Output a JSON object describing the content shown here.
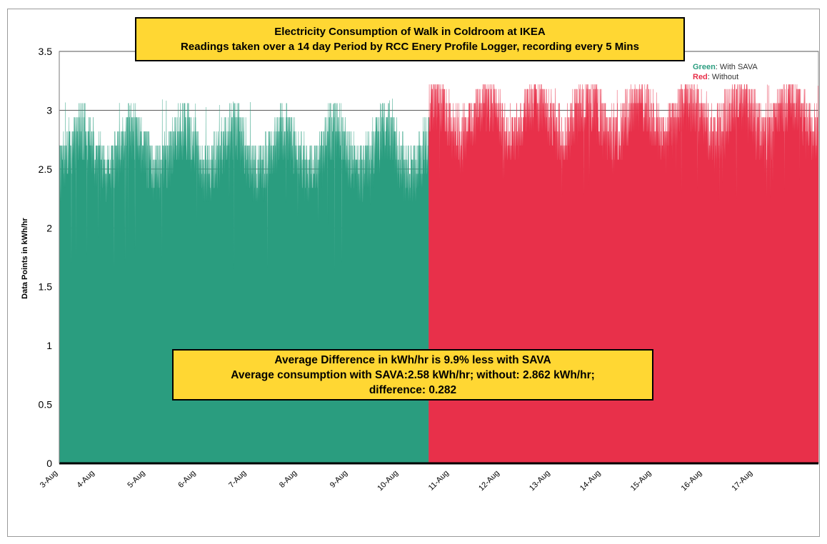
{
  "colors": {
    "with_sava": "#2a9d7f",
    "without": "#e8304a",
    "box": "#ffd733"
  },
  "legend": {
    "green_key": "Green",
    "green_rest": ": With SAVA",
    "red_key": "Red",
    "red_rest": ": Without"
  },
  "summary_box": {
    "line1": "Average Difference in kWh/hr is 9.9% less with SAVA",
    "line2": "Average consumption with SAVA:2.58 kWh/hr; without: 2.862 kWh/hr;",
    "line3": "difference: 0.282"
  },
  "chart_data": {
    "type": "area",
    "title": "Electricity Consumption of Walk in Coldroom  at IKEA",
    "subtitle": "Readings taken over a 14 day Period by RCC Enery Profile Logger, recording every 5 Mins",
    "xlabel": "",
    "ylabel": "Data Points in kWh/hr",
    "ylim": [
      0,
      3.5
    ],
    "yticks": [
      0,
      0.5,
      1,
      1.5,
      2,
      2.5,
      3,
      3.5
    ],
    "ytick_labels": [
      "0",
      "0.5",
      "1",
      "1.5",
      "2",
      "2.5",
      "3",
      "3.5"
    ],
    "xlim": [
      "2007-08-03",
      "2007-08-17 23:59"
    ],
    "xtick_labels": [
      "3-Aug",
      "4-Aug",
      "5-Aug",
      "6-Aug",
      "7-Aug",
      "8-Aug",
      "9-Aug",
      "10-Aug",
      "11-Aug",
      "12-Aug",
      "13-Aug",
      "14-Aug",
      "15-Aug",
      "16-Aug",
      "17-Aug"
    ],
    "grid": "horizontal",
    "series": [
      {
        "name": "With SAVA",
        "x_range": [
          "3-Aug",
          "10-Aug"
        ],
        "typical_range": [
          2.3,
          2.88
        ],
        "min": 1.6,
        "max": 3.1,
        "average": 2.58
      },
      {
        "name": "Without",
        "x_range": [
          "10-Aug",
          "17-Aug"
        ],
        "typical_range": [
          2.52,
          3.1
        ],
        "min": 2.2,
        "max": 3.22,
        "average": 2.862
      }
    ]
  }
}
